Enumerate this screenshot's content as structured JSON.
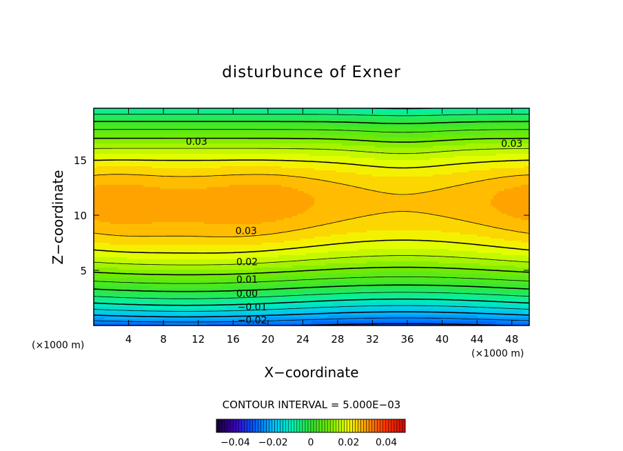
{
  "chart_data": {
    "type": "contour",
    "title": "disturbunce of Exner",
    "xlabel": "X−coordinate",
    "ylabel": "Z−coordinate",
    "x_unit_left": "(×1000 m)",
    "x_unit_right": "(×1000 m)",
    "xlim": [
      0,
      50
    ],
    "ylim": [
      0,
      19.7
    ],
    "xticks": [
      4,
      8,
      12,
      16,
      20,
      24,
      28,
      32,
      36,
      40,
      44,
      48
    ],
    "yticks": [
      5,
      10,
      15
    ],
    "contour_interval_text": "CONTOUR INTERVAL = 5.000E−03",
    "contour_labels": [
      {
        "text": "0.03",
        "x": 11.8,
        "z": 16.7
      },
      {
        "text": "0.03",
        "x": 48.0,
        "z": 16.5
      },
      {
        "text": "0.03",
        "x": 17.5,
        "z": 8.6
      },
      {
        "text": "0.02",
        "x": 17.6,
        "z": 5.8
      },
      {
        "text": "0.01",
        "x": 17.6,
        "z": 4.2
      },
      {
        "text": "0.00",
        "x": 17.6,
        "z": 2.9
      },
      {
        "text": "−0.01",
        "x": 18.2,
        "z": 1.7
      },
      {
        "text": "−0.02",
        "x": 18.2,
        "z": 0.5
      }
    ],
    "colorbar": {
      "range": [
        -0.05,
        0.05
      ],
      "ticks": [
        "−0.04",
        "−0.02",
        "0",
        "0.02",
        "0.04"
      ]
    }
  }
}
